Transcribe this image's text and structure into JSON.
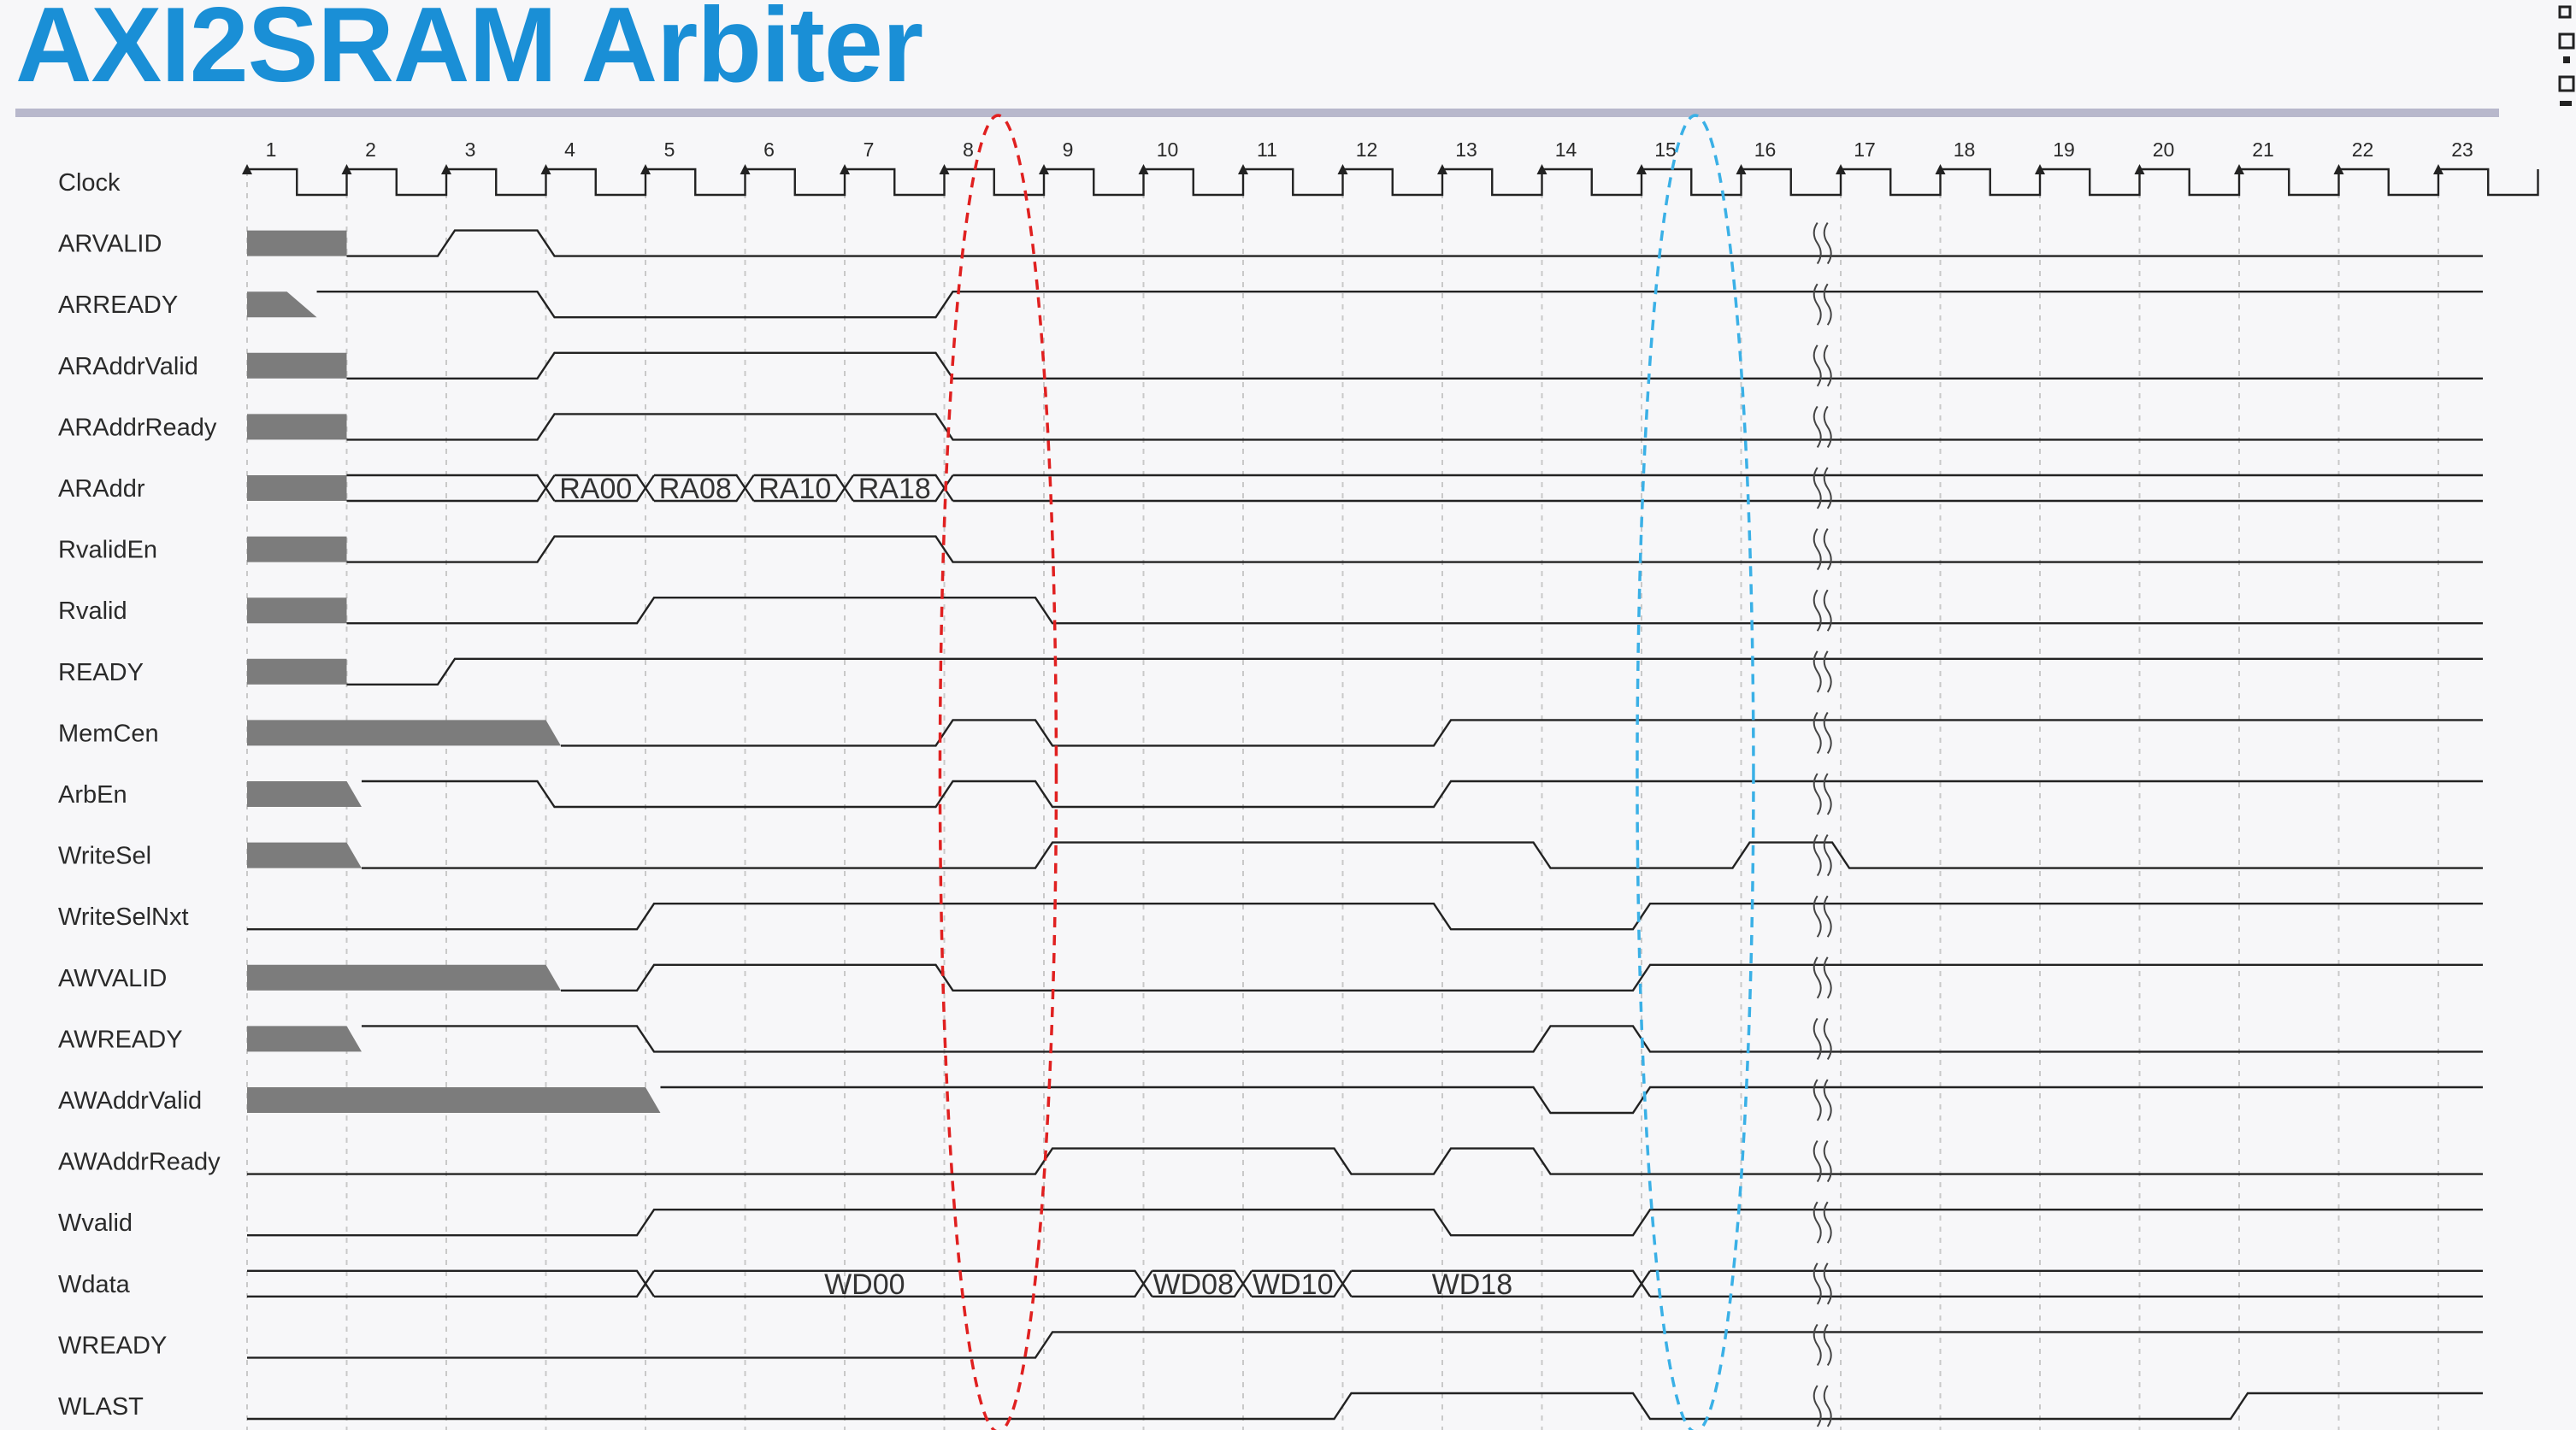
{
  "title": "AXI2SRAM Arbiter",
  "cycle_numbers": [
    "1",
    "2",
    "3",
    "4",
    "5",
    "6",
    "7",
    "8",
    "9",
    "10",
    "11",
    "12",
    "13",
    "14",
    "15",
    "16",
    "17",
    "18",
    "19",
    "20",
    "21",
    "22",
    "23"
  ],
  "colors": {
    "title": "#1a8fd6",
    "rule": "#b8b8cc",
    "wave": "#222222",
    "undefined_fill": "#7c7c7c",
    "red_ellipse": "#e02020",
    "blue_ellipse": "#3ab0e6",
    "grid": "#c9c9c9"
  },
  "highlights": [
    {
      "name": "red-dashed-ellipse",
      "color": "#e02020",
      "around_cycle": 8.3
    },
    {
      "name": "blue-dashed-ellipse",
      "color": "#3ab0e6",
      "around_cycle": 15.3
    }
  ],
  "break_cycle": 16.8,
  "signals": [
    {
      "id": "clock",
      "label": "Clock"
    },
    {
      "id": "arvalid",
      "label": "ARVALID"
    },
    {
      "id": "arready",
      "label": "ARREADY"
    },
    {
      "id": "araddrvalid",
      "label": "ARAddrValid"
    },
    {
      "id": "araddrready",
      "label": "ARAddrReady"
    },
    {
      "id": "araddr",
      "label": "ARAddr",
      "bus": [
        "RA00",
        "RA08",
        "RA10",
        "RA18"
      ]
    },
    {
      "id": "rvaliden",
      "label": "RvalidEn"
    },
    {
      "id": "rvalid",
      "label": "Rvalid"
    },
    {
      "id": "ready",
      "label": "READY"
    },
    {
      "id": "memcen",
      "label": "MemCen"
    },
    {
      "id": "arben",
      "label": "ArbEn"
    },
    {
      "id": "writesel",
      "label": "WriteSel"
    },
    {
      "id": "writeselnxt",
      "label": "WriteSelNxt"
    },
    {
      "id": "awvalid",
      "label": "AWVALID"
    },
    {
      "id": "awready",
      "label": "AWREADY"
    },
    {
      "id": "awaddrvalid",
      "label": "AWAddrValid"
    },
    {
      "id": "awaddrready",
      "label": "AWAddrReady"
    },
    {
      "id": "wvalid",
      "label": "Wvalid"
    },
    {
      "id": "wdata",
      "label": "Wdata",
      "bus": [
        "WD00",
        "WD08",
        "WD10",
        "WD18"
      ]
    },
    {
      "id": "wready",
      "label": "WREADY"
    },
    {
      "id": "wlast",
      "label": "WLAST"
    }
  ]
}
